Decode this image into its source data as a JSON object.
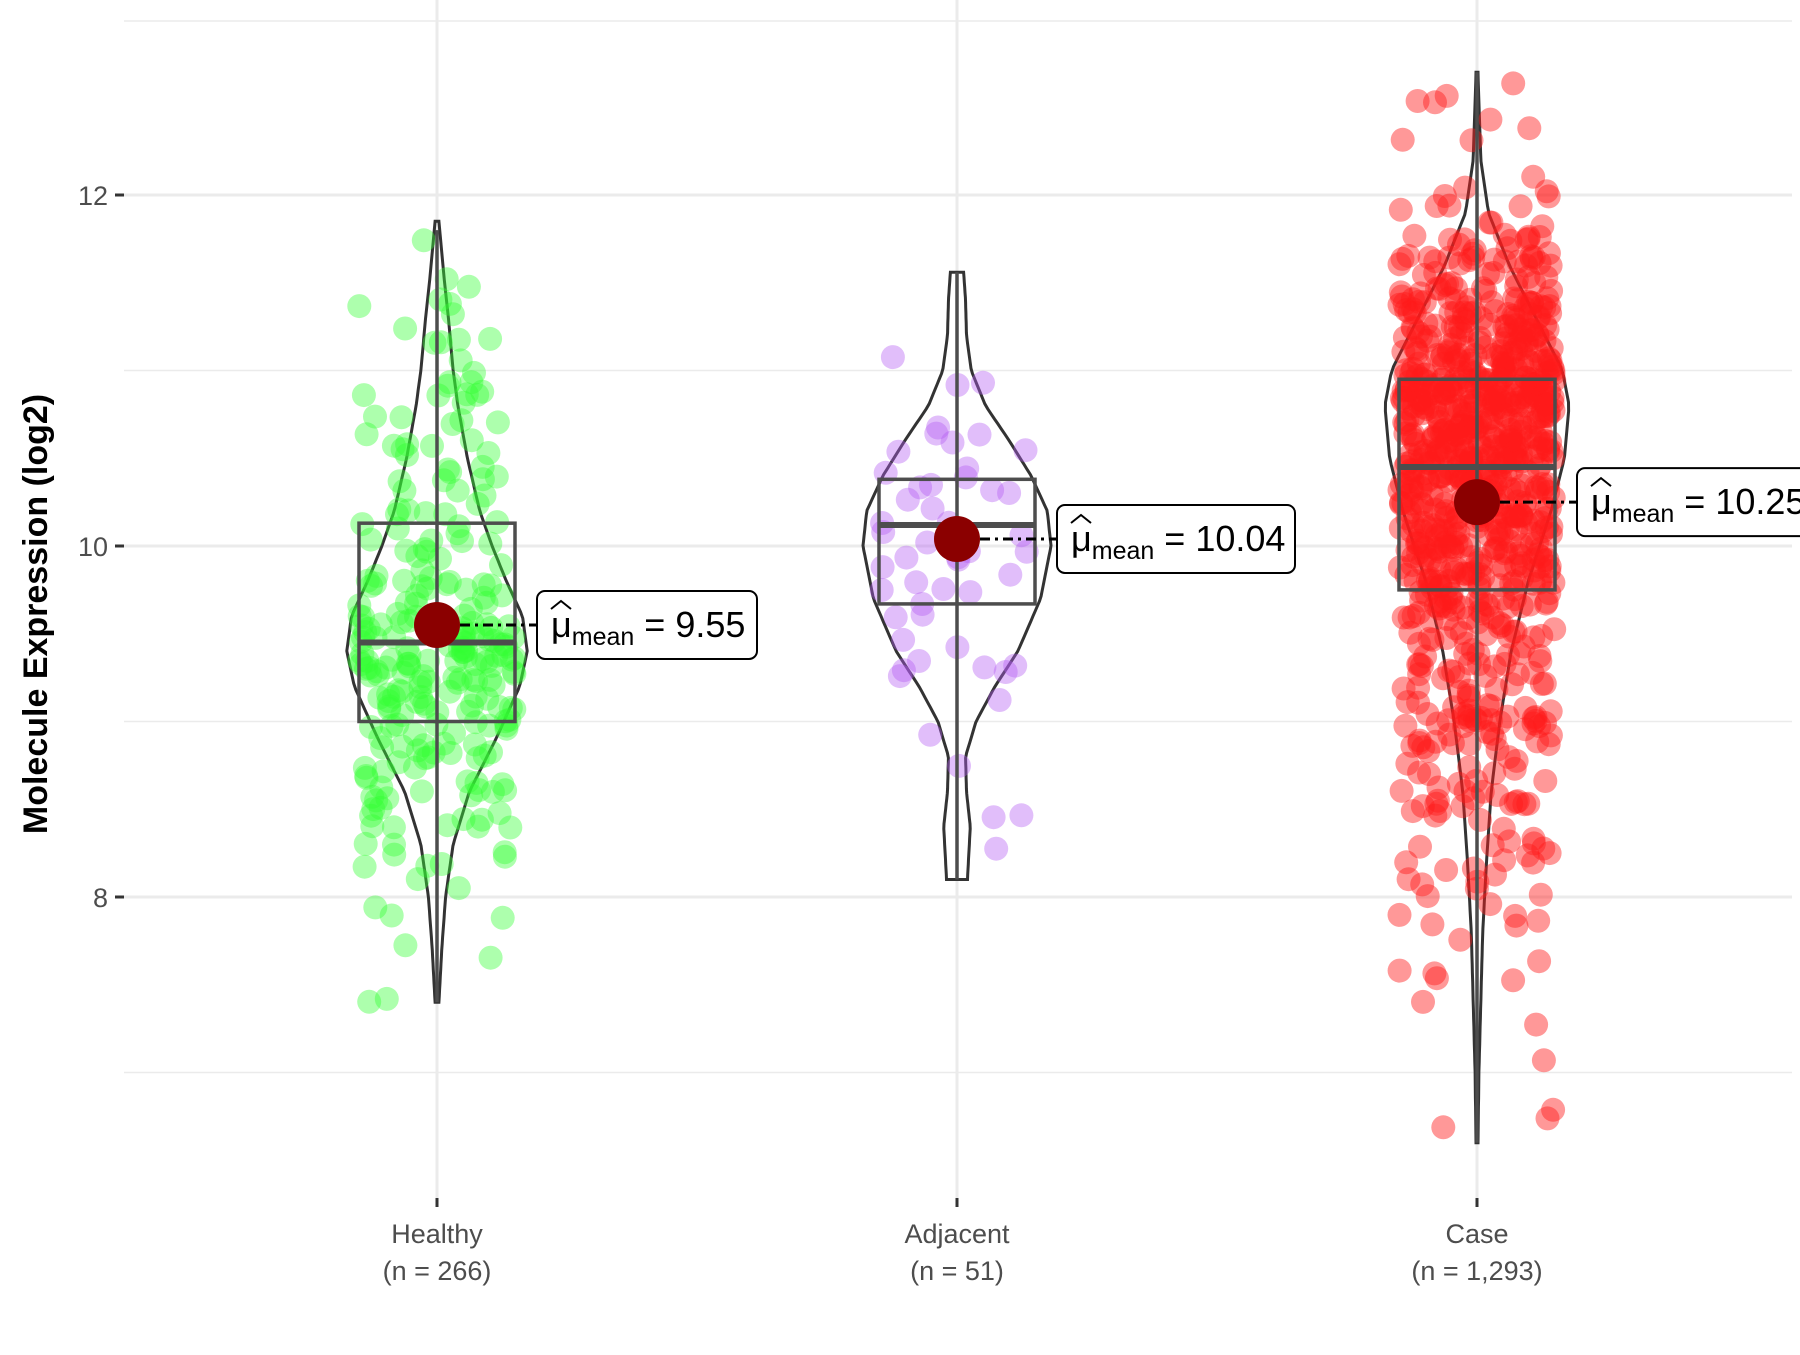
{
  "chart_data": {
    "type": "violin-box-jitter",
    "title": "",
    "xlabel": "",
    "ylabel": "Molecule Expression (log2)",
    "ylim": [
      6.4,
      12.8
    ],
    "yticks": [
      8,
      10,
      12
    ],
    "ytick_labels": [
      "8",
      "10",
      "12"
    ],
    "grid": true,
    "groups": [
      {
        "name": "Healthy",
        "n_label": "(n = 266)",
        "n": 266,
        "color": "#33ff33",
        "mean": 9.55,
        "mean_label": "9.55",
        "box": {
          "q1": 9.0,
          "median": 9.45,
          "q3": 10.13
        },
        "whisker": {
          "low": 7.4,
          "high": 11.8
        },
        "range": [
          7.4,
          11.85
        ],
        "density": [
          [
            7.4,
            0.02
          ],
          [
            7.7,
            0.05
          ],
          [
            8.0,
            0.09
          ],
          [
            8.3,
            0.17
          ],
          [
            8.6,
            0.34
          ],
          [
            8.9,
            0.62
          ],
          [
            9.2,
            0.87
          ],
          [
            9.4,
            0.95
          ],
          [
            9.6,
            0.9
          ],
          [
            9.8,
            0.73
          ],
          [
            10.0,
            0.58
          ],
          [
            10.2,
            0.45
          ],
          [
            10.5,
            0.32
          ],
          [
            10.8,
            0.22
          ],
          [
            11.0,
            0.17
          ],
          [
            11.3,
            0.12
          ],
          [
            11.5,
            0.08
          ],
          [
            11.85,
            0.02
          ]
        ]
      },
      {
        "name": "Adjacent",
        "n_label": "(n = 51)",
        "n": 51,
        "color": "#b35cf2",
        "mean": 10.04,
        "mean_label": "10.04",
        "box": {
          "q1": 9.67,
          "median": 10.12,
          "q3": 10.38
        },
        "whisker": {
          "low": 8.1,
          "high": 11.56
        },
        "range": [
          8.1,
          11.56
        ],
        "density": [
          [
            8.1,
            0.11
          ],
          [
            8.4,
            0.14
          ],
          [
            8.6,
            0.1
          ],
          [
            8.8,
            0.09
          ],
          [
            9.0,
            0.2
          ],
          [
            9.2,
            0.4
          ],
          [
            9.4,
            0.64
          ],
          [
            9.7,
            0.88
          ],
          [
            10.0,
            0.99
          ],
          [
            10.2,
            0.95
          ],
          [
            10.4,
            0.78
          ],
          [
            10.6,
            0.55
          ],
          [
            10.8,
            0.3
          ],
          [
            11.0,
            0.15
          ],
          [
            11.2,
            0.1
          ],
          [
            11.4,
            0.09
          ],
          [
            11.56,
            0.07
          ]
        ]
      },
      {
        "name": "Case",
        "n_label": "(n = 1,293)",
        "n": 1293,
        "color": "#ff1a1a",
        "mean": 10.25,
        "mean_label": "10.25",
        "box": {
          "q1": 9.75,
          "median": 10.45,
          "q3": 10.95
        },
        "whisker": {
          "low": 6.6,
          "high": 12.7
        },
        "range": [
          6.6,
          12.7
        ],
        "density": [
          [
            6.6,
            0.01
          ],
          [
            7.0,
            0.02
          ],
          [
            7.4,
            0.04
          ],
          [
            7.8,
            0.06
          ],
          [
            8.2,
            0.1
          ],
          [
            8.6,
            0.15
          ],
          [
            9.0,
            0.24
          ],
          [
            9.4,
            0.36
          ],
          [
            9.8,
            0.54
          ],
          [
            10.2,
            0.78
          ],
          [
            10.5,
            0.92
          ],
          [
            10.8,
            0.97
          ],
          [
            11.0,
            0.9
          ],
          [
            11.3,
            0.62
          ],
          [
            11.6,
            0.34
          ],
          [
            11.9,
            0.12
          ],
          [
            12.2,
            0.04
          ],
          [
            12.7,
            0.01
          ]
        ]
      }
    ],
    "mean_marker_color": "#8b0000",
    "mean_label_prefix": "μ",
    "mean_label_subscript": "mean",
    "mean_label_equals": "="
  }
}
